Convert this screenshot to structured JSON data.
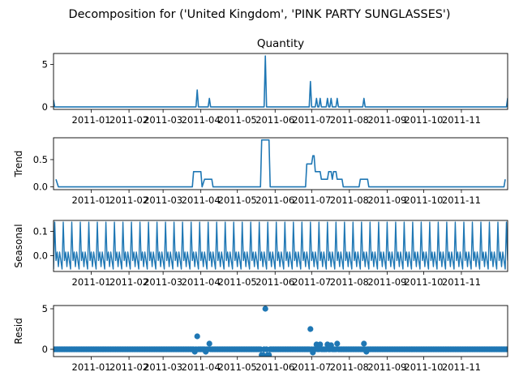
{
  "figure": {
    "suptitle": "Decomposition for ('United Kingdom', 'PINK PARTY SUNGLASSES')"
  },
  "chart_data": [
    {
      "type": "line",
      "title": "Quantity",
      "xlabel": "",
      "ylabel": "",
      "color": "#1f77b4",
      "x_range": [
        "2010-12-01",
        "2011-12-09"
      ],
      "ylim": [
        -0.3,
        6.3
      ],
      "yticks": [
        0,
        5
      ],
      "xticks": [
        "2011-01",
        "2011-02",
        "2011-03",
        "2011-04",
        "2011-05",
        "2011-06",
        "2011-07",
        "2011-08",
        "2011-09",
        "2011-10",
        "2011-11"
      ],
      "baseline": 0,
      "spikes": [
        {
          "date": "2010-12-01",
          "value": 0.8
        },
        {
          "date": "2011-03-29",
          "value": 2
        },
        {
          "date": "2011-04-08",
          "value": 1
        },
        {
          "date": "2011-05-24",
          "value": 6
        },
        {
          "date": "2011-06-30",
          "value": 3
        },
        {
          "date": "2011-07-05",
          "value": 1
        },
        {
          "date": "2011-07-08",
          "value": 1
        },
        {
          "date": "2011-07-14",
          "value": 1
        },
        {
          "date": "2011-07-17",
          "value": 1
        },
        {
          "date": "2011-07-22",
          "value": 1
        },
        {
          "date": "2011-08-13",
          "value": 1
        },
        {
          "date": "2011-12-09",
          "value": 1
        }
      ]
    },
    {
      "type": "line",
      "title": "",
      "xlabel": "",
      "ylabel": "Trend",
      "color": "#1f77b4",
      "x_range": [
        "2010-12-01",
        "2011-12-09"
      ],
      "ylim": [
        -0.05,
        0.9
      ],
      "yticks": [
        0.0,
        0.5
      ],
      "ytick_labels": [
        "0.0",
        "0.5"
      ],
      "xticks": [
        "2011-01",
        "2011-02",
        "2011-03",
        "2011-04",
        "2011-05",
        "2011-06",
        "2011-07",
        "2011-08",
        "2011-09",
        "2011-10",
        "2011-11"
      ],
      "points": [
        [
          "2010-12-03",
          0.14
        ],
        [
          "2010-12-05",
          0.0
        ],
        [
          "2011-03-25",
          0.0
        ],
        [
          "2011-03-26",
          0.28
        ],
        [
          "2011-04-01",
          0.28
        ],
        [
          "2011-04-02",
          0.0
        ],
        [
          "2011-04-04",
          0.14
        ],
        [
          "2011-04-10",
          0.14
        ],
        [
          "2011-04-11",
          0.0
        ],
        [
          "2011-05-20",
          0.0
        ],
        [
          "2011-05-21",
          0.86
        ],
        [
          "2011-05-27",
          0.86
        ],
        [
          "2011-05-28",
          0.0
        ],
        [
          "2011-06-26",
          0.0
        ],
        [
          "2011-06-27",
          0.42
        ],
        [
          "2011-07-01",
          0.42
        ],
        [
          "2011-07-02",
          0.57
        ],
        [
          "2011-07-03",
          0.57
        ],
        [
          "2011-07-04",
          0.28
        ],
        [
          "2011-07-08",
          0.28
        ],
        [
          "2011-07-09",
          0.14
        ],
        [
          "2011-07-14",
          0.14
        ],
        [
          "2011-07-15",
          0.28
        ],
        [
          "2011-07-17",
          0.28
        ],
        [
          "2011-07-18",
          0.14
        ],
        [
          "2011-07-19",
          0.28
        ],
        [
          "2011-07-21",
          0.28
        ],
        [
          "2011-07-22",
          0.14
        ],
        [
          "2011-07-26",
          0.14
        ],
        [
          "2011-07-27",
          0.0
        ],
        [
          "2011-08-09",
          0.0
        ],
        [
          "2011-08-10",
          0.14
        ],
        [
          "2011-08-16",
          0.14
        ],
        [
          "2011-08-17",
          0.0
        ],
        [
          "2011-12-06",
          0.0
        ],
        [
          "2011-12-07",
          0.14
        ]
      ]
    },
    {
      "type": "line",
      "title": "",
      "xlabel": "",
      "ylabel": "Seasonal",
      "color": "#1f77b4",
      "x_range": [
        "2010-12-01",
        "2011-12-09"
      ],
      "ylim": [
        -0.065,
        0.145
      ],
      "yticks": [
        0.0,
        0.1
      ],
      "ytick_labels": [
        "0.0",
        "0.1"
      ],
      "xticks": [
        "2011-01",
        "2011-02",
        "2011-03",
        "2011-04",
        "2011-05",
        "2011-06",
        "2011-07",
        "2011-08",
        "2011-09",
        "2011-10",
        "2011-11"
      ],
      "period_days": 7,
      "weekly_pattern": [
        -0.055,
        0.138,
        -0.02,
        0.015,
        -0.045,
        0.015,
        -0.02
      ]
    },
    {
      "type": "scatter",
      "title": "",
      "xlabel": "",
      "ylabel": "Resid",
      "color": "#1f77b4",
      "x_range": [
        "2010-12-01",
        "2011-12-09"
      ],
      "ylim": [
        -0.9,
        5.4
      ],
      "yticks": [
        0,
        5
      ],
      "xticks": [
        "2011-01",
        "2011-02",
        "2011-03",
        "2011-04",
        "2011-05",
        "2011-06",
        "2011-07",
        "2011-08",
        "2011-09",
        "2011-10",
        "2011-11"
      ],
      "baseline": 0,
      "outliers": [
        [
          "2011-03-29",
          1.6
        ],
        [
          "2011-04-08",
          0.7
        ],
        [
          "2011-05-24",
          5.0
        ],
        [
          "2011-05-21",
          -0.7
        ],
        [
          "2011-05-22",
          -0.7
        ],
        [
          "2011-05-26",
          -0.7
        ],
        [
          "2011-05-27",
          -0.7
        ],
        [
          "2011-06-30",
          2.5
        ],
        [
          "2011-07-05",
          0.6
        ],
        [
          "2011-07-08",
          0.6
        ],
        [
          "2011-07-14",
          0.6
        ],
        [
          "2011-07-17",
          0.5
        ],
        [
          "2011-07-22",
          0.7
        ],
        [
          "2011-08-13",
          0.7
        ],
        [
          "2011-03-27",
          -0.3
        ],
        [
          "2011-04-05",
          -0.3
        ],
        [
          "2011-07-02",
          -0.4
        ],
        [
          "2011-08-15",
          -0.3
        ]
      ]
    }
  ]
}
